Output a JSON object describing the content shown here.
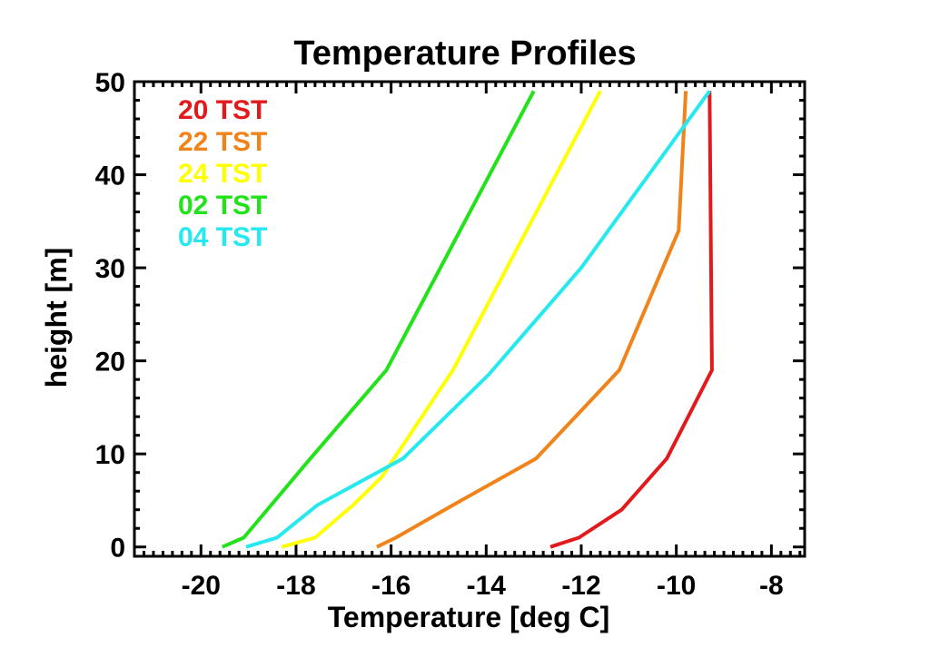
{
  "chart_data": {
    "type": "line",
    "title": "Temperature Profiles",
    "xlabel": "Temperature [deg C]",
    "ylabel": "height [m]",
    "xlim": [
      -21.4,
      -7.3
    ],
    "ylim": [
      -1,
      50
    ],
    "xticks": [
      -20,
      -18,
      -16,
      -14,
      -12,
      -10,
      -8
    ],
    "xtick_labels": [
      "-20",
      "-18",
      "-16",
      "-14",
      "-12",
      "-10",
      "-8"
    ],
    "yticks": [
      0,
      10,
      20,
      30,
      40,
      50
    ],
    "ytick_labels": [
      "0",
      "10",
      "20",
      "30",
      "40",
      "50"
    ],
    "legend_position": "top-left",
    "series": [
      {
        "name": "20 TST",
        "color": "#e31a1c",
        "points": [
          [
            -12.65,
            0
          ],
          [
            -12.05,
            1
          ],
          [
            -11.15,
            4
          ],
          [
            -10.2,
            9.5
          ],
          [
            -9.25,
            19
          ],
          [
            -9.3,
            49
          ]
        ]
      },
      {
        "name": "22 TST",
        "color": "#f0841a",
        "points": [
          [
            -16.3,
            0
          ],
          [
            -15.9,
            1
          ],
          [
            -14.7,
            4.5
          ],
          [
            -12.95,
            9.5
          ],
          [
            -11.2,
            19
          ],
          [
            -9.95,
            34
          ],
          [
            -9.8,
            49
          ]
        ]
      },
      {
        "name": "24 TST",
        "color": "#ffff00",
        "points": [
          [
            -18.3,
            0
          ],
          [
            -17.6,
            1
          ],
          [
            -16.8,
            4.5
          ],
          [
            -16.2,
            7.5
          ],
          [
            -14.7,
            19
          ],
          [
            -11.6,
            49
          ]
        ]
      },
      {
        "name": "02 TST",
        "color": "#22e31a",
        "points": [
          [
            -19.55,
            0
          ],
          [
            -19.1,
            1
          ],
          [
            -17.7,
            9.5
          ],
          [
            -16.1,
            19
          ],
          [
            -13.0,
            49
          ]
        ]
      },
      {
        "name": "04 TST",
        "color": "#25e9ef",
        "points": [
          [
            -19.05,
            0
          ],
          [
            -18.4,
            1
          ],
          [
            -17.55,
            4.5
          ],
          [
            -15.75,
            9.5
          ],
          [
            -13.95,
            18.5
          ],
          [
            -12.0,
            30
          ],
          [
            -9.3,
            49
          ]
        ]
      }
    ]
  }
}
